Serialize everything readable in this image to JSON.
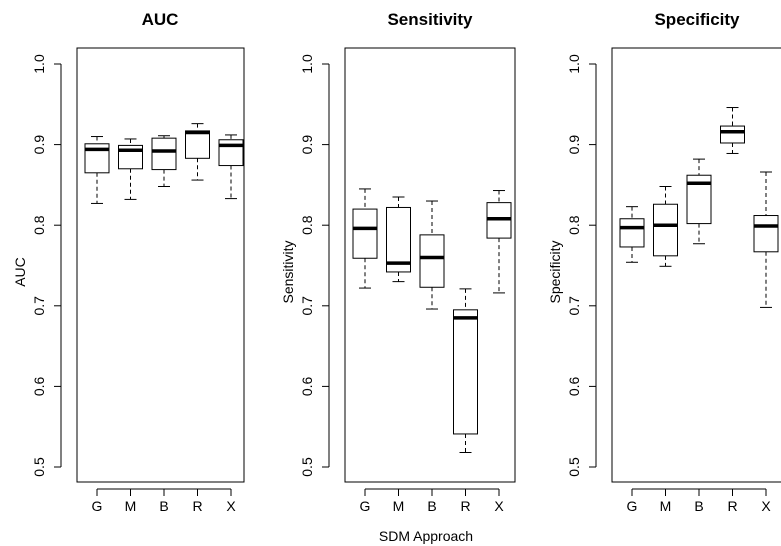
{
  "xlabel": "SDM Approach",
  "chart_data": [
    {
      "type": "boxplot",
      "title": "AUC",
      "ylabel": "AUC",
      "categories": [
        "G",
        "M",
        "B",
        "R",
        "X"
      ],
      "ylim": [
        0.5,
        1.0
      ],
      "yticks": [
        "0.5",
        "0.6",
        "0.7",
        "0.8",
        "0.9",
        "1.0"
      ],
      "boxes": [
        {
          "category": "G",
          "min": 0.827,
          "q1": 0.865,
          "median": 0.894,
          "q3": 0.901,
          "max": 0.91
        },
        {
          "category": "M",
          "min": 0.832,
          "q1": 0.87,
          "median": 0.893,
          "q3": 0.899,
          "max": 0.907
        },
        {
          "category": "B",
          "min": 0.848,
          "q1": 0.869,
          "median": 0.892,
          "q3": 0.908,
          "max": 0.911
        },
        {
          "category": "R",
          "min": 0.856,
          "q1": 0.883,
          "median": 0.915,
          "q3": 0.917,
          "max": 0.926
        },
        {
          "category": "X",
          "min": 0.833,
          "q1": 0.874,
          "median": 0.899,
          "q3": 0.906,
          "max": 0.912
        }
      ]
    },
    {
      "type": "boxplot",
      "title": "Sensitivity",
      "ylabel": "Sensitivity",
      "categories": [
        "G",
        "M",
        "B",
        "R",
        "X"
      ],
      "ylim": [
        0.5,
        1.0
      ],
      "yticks": [
        "0.5",
        "0.6",
        "0.7",
        "0.8",
        "0.9",
        "1.0"
      ],
      "boxes": [
        {
          "category": "G",
          "min": 0.722,
          "q1": 0.759,
          "median": 0.796,
          "q3": 0.82,
          "max": 0.845
        },
        {
          "category": "M",
          "min": 0.73,
          "q1": 0.742,
          "median": 0.753,
          "q3": 0.822,
          "max": 0.835
        },
        {
          "category": "B",
          "min": 0.696,
          "q1": 0.723,
          "median": 0.76,
          "q3": 0.788,
          "max": 0.83
        },
        {
          "category": "R",
          "min": 0.518,
          "q1": 0.541,
          "median": 0.685,
          "q3": 0.695,
          "max": 0.721
        },
        {
          "category": "X",
          "min": 0.716,
          "q1": 0.784,
          "median": 0.808,
          "q3": 0.828,
          "max": 0.843
        }
      ]
    },
    {
      "type": "boxplot",
      "title": "Specificity",
      "ylabel": "Specificity",
      "categories": [
        "G",
        "M",
        "B",
        "R",
        "X"
      ],
      "ylim": [
        0.5,
        1.0
      ],
      "yticks": [
        "0.5",
        "0.6",
        "0.7",
        "0.8",
        "0.9",
        "1.0"
      ],
      "boxes": [
        {
          "category": "G",
          "min": 0.754,
          "q1": 0.773,
          "median": 0.797,
          "q3": 0.808,
          "max": 0.823
        },
        {
          "category": "M",
          "min": 0.749,
          "q1": 0.762,
          "median": 0.8,
          "q3": 0.826,
          "max": 0.848
        },
        {
          "category": "B",
          "min": 0.777,
          "q1": 0.802,
          "median": 0.852,
          "q3": 0.862,
          "max": 0.882
        },
        {
          "category": "R",
          "min": 0.889,
          "q1": 0.902,
          "median": 0.916,
          "q3": 0.923,
          "max": 0.946
        },
        {
          "category": "X",
          "min": 0.698,
          "q1": 0.767,
          "median": 0.799,
          "q3": 0.812,
          "max": 0.866
        }
      ]
    }
  ]
}
